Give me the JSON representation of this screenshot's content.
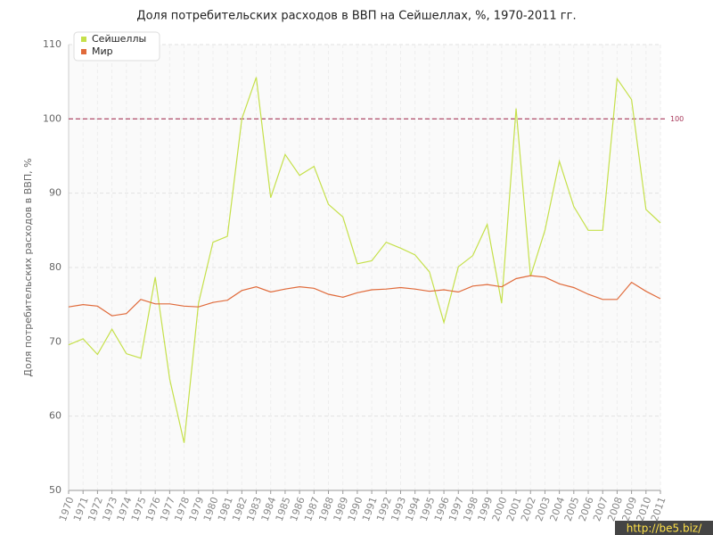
{
  "chart_data": {
    "type": "line",
    "title": "Доля потребительских расходов в ВВП на Сейшеллах, %, 1970-2011 гг.",
    "y_label": "Доля потребительских расходов в ВВП, %",
    "x": [
      1970,
      1971,
      1972,
      1973,
      1974,
      1975,
      1976,
      1977,
      1978,
      1979,
      1980,
      1981,
      1982,
      1983,
      1984,
      1985,
      1986,
      1987,
      1988,
      1989,
      1990,
      1991,
      1992,
      1993,
      1994,
      1995,
      1996,
      1997,
      1998,
      1999,
      2000,
      2001,
      2002,
      2003,
      2004,
      2005,
      2006,
      2007,
      2008,
      2009,
      2010,
      2011
    ],
    "xlim": [
      1970,
      2011
    ],
    "ylim": [
      50,
      110
    ],
    "yticks": [
      50,
      60,
      70,
      80,
      90,
      100,
      110
    ],
    "grid": true,
    "legend": "top-left",
    "reference_line": 100,
    "watermark": "http://be5.biz/",
    "series": [
      {
        "name": "Сейшеллы",
        "color": "#c5e04a",
        "values": [
          69.6,
          70.4,
          68.3,
          71.7,
          68.4,
          67.8,
          78.7,
          65.0,
          56.4,
          75.2,
          83.4,
          84.2,
          100.0,
          105.6,
          89.4,
          95.2,
          92.4,
          93.6,
          88.5,
          86.8,
          80.5,
          80.9,
          83.4,
          82.6,
          81.7,
          79.4,
          72.6,
          80.1,
          81.6,
          85.8,
          75.2,
          101.4,
          78.8,
          85.0,
          94.3,
          88.2,
          85.0,
          85.0,
          105.4,
          102.6,
          87.8,
          86.0
        ]
      },
      {
        "name": "Мир",
        "color": "#e06a3a",
        "values": [
          74.7,
          75.0,
          74.8,
          73.5,
          73.8,
          75.7,
          75.1,
          75.1,
          74.8,
          74.7,
          75.3,
          75.6,
          76.9,
          77.4,
          76.7,
          77.1,
          77.4,
          77.2,
          76.4,
          76.0,
          76.6,
          77.0,
          77.1,
          77.3,
          77.1,
          76.8,
          77.0,
          76.7,
          77.5,
          77.7,
          77.4,
          78.5,
          78.9,
          78.7,
          77.8,
          77.3,
          76.4,
          75.7,
          75.7,
          78.0,
          76.8,
          75.8
        ]
      }
    ]
  }
}
